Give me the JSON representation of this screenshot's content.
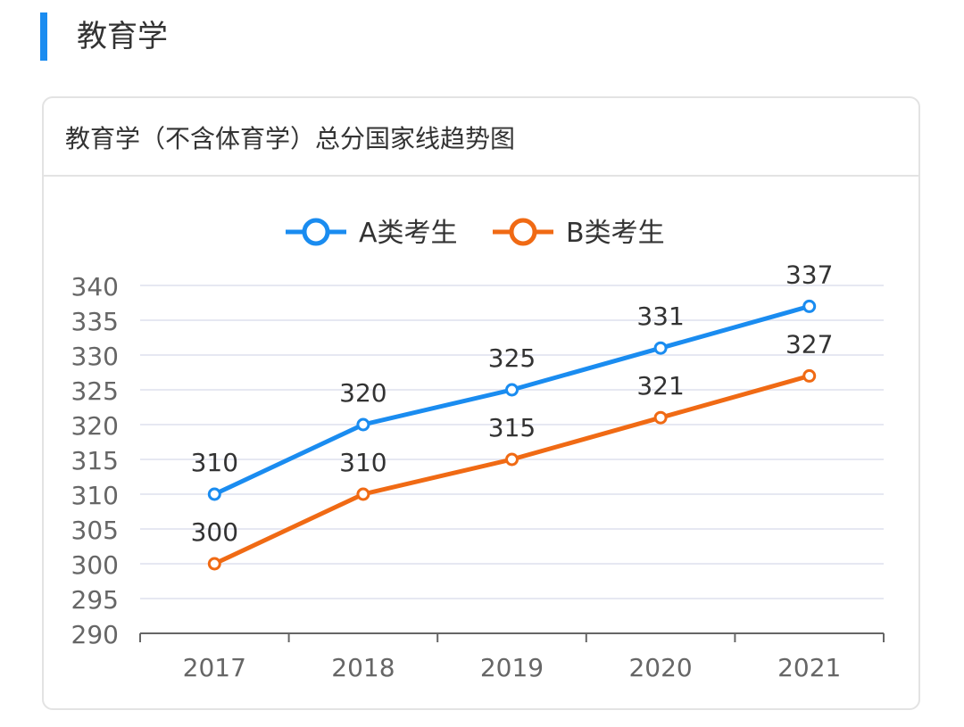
{
  "section_title": "教育学",
  "chart_data": {
    "type": "line",
    "title": "教育学（不含体育学）总分国家线趋势图",
    "categories": [
      "2017",
      "2018",
      "2019",
      "2020",
      "2021"
    ],
    "series": [
      {
        "name": "A类考生",
        "values": [
          310,
          320,
          325,
          331,
          337
        ],
        "color": "#1a8cf0"
      },
      {
        "name": "B类考生",
        "values": [
          300,
          310,
          315,
          321,
          327
        ],
        "color": "#f06a14"
      }
    ],
    "ylim": [
      290,
      340
    ],
    "yticks": [
      290,
      295,
      300,
      305,
      310,
      315,
      320,
      325,
      330,
      335,
      340
    ],
    "grid": true,
    "legend": "top-center",
    "data_labels": true
  }
}
